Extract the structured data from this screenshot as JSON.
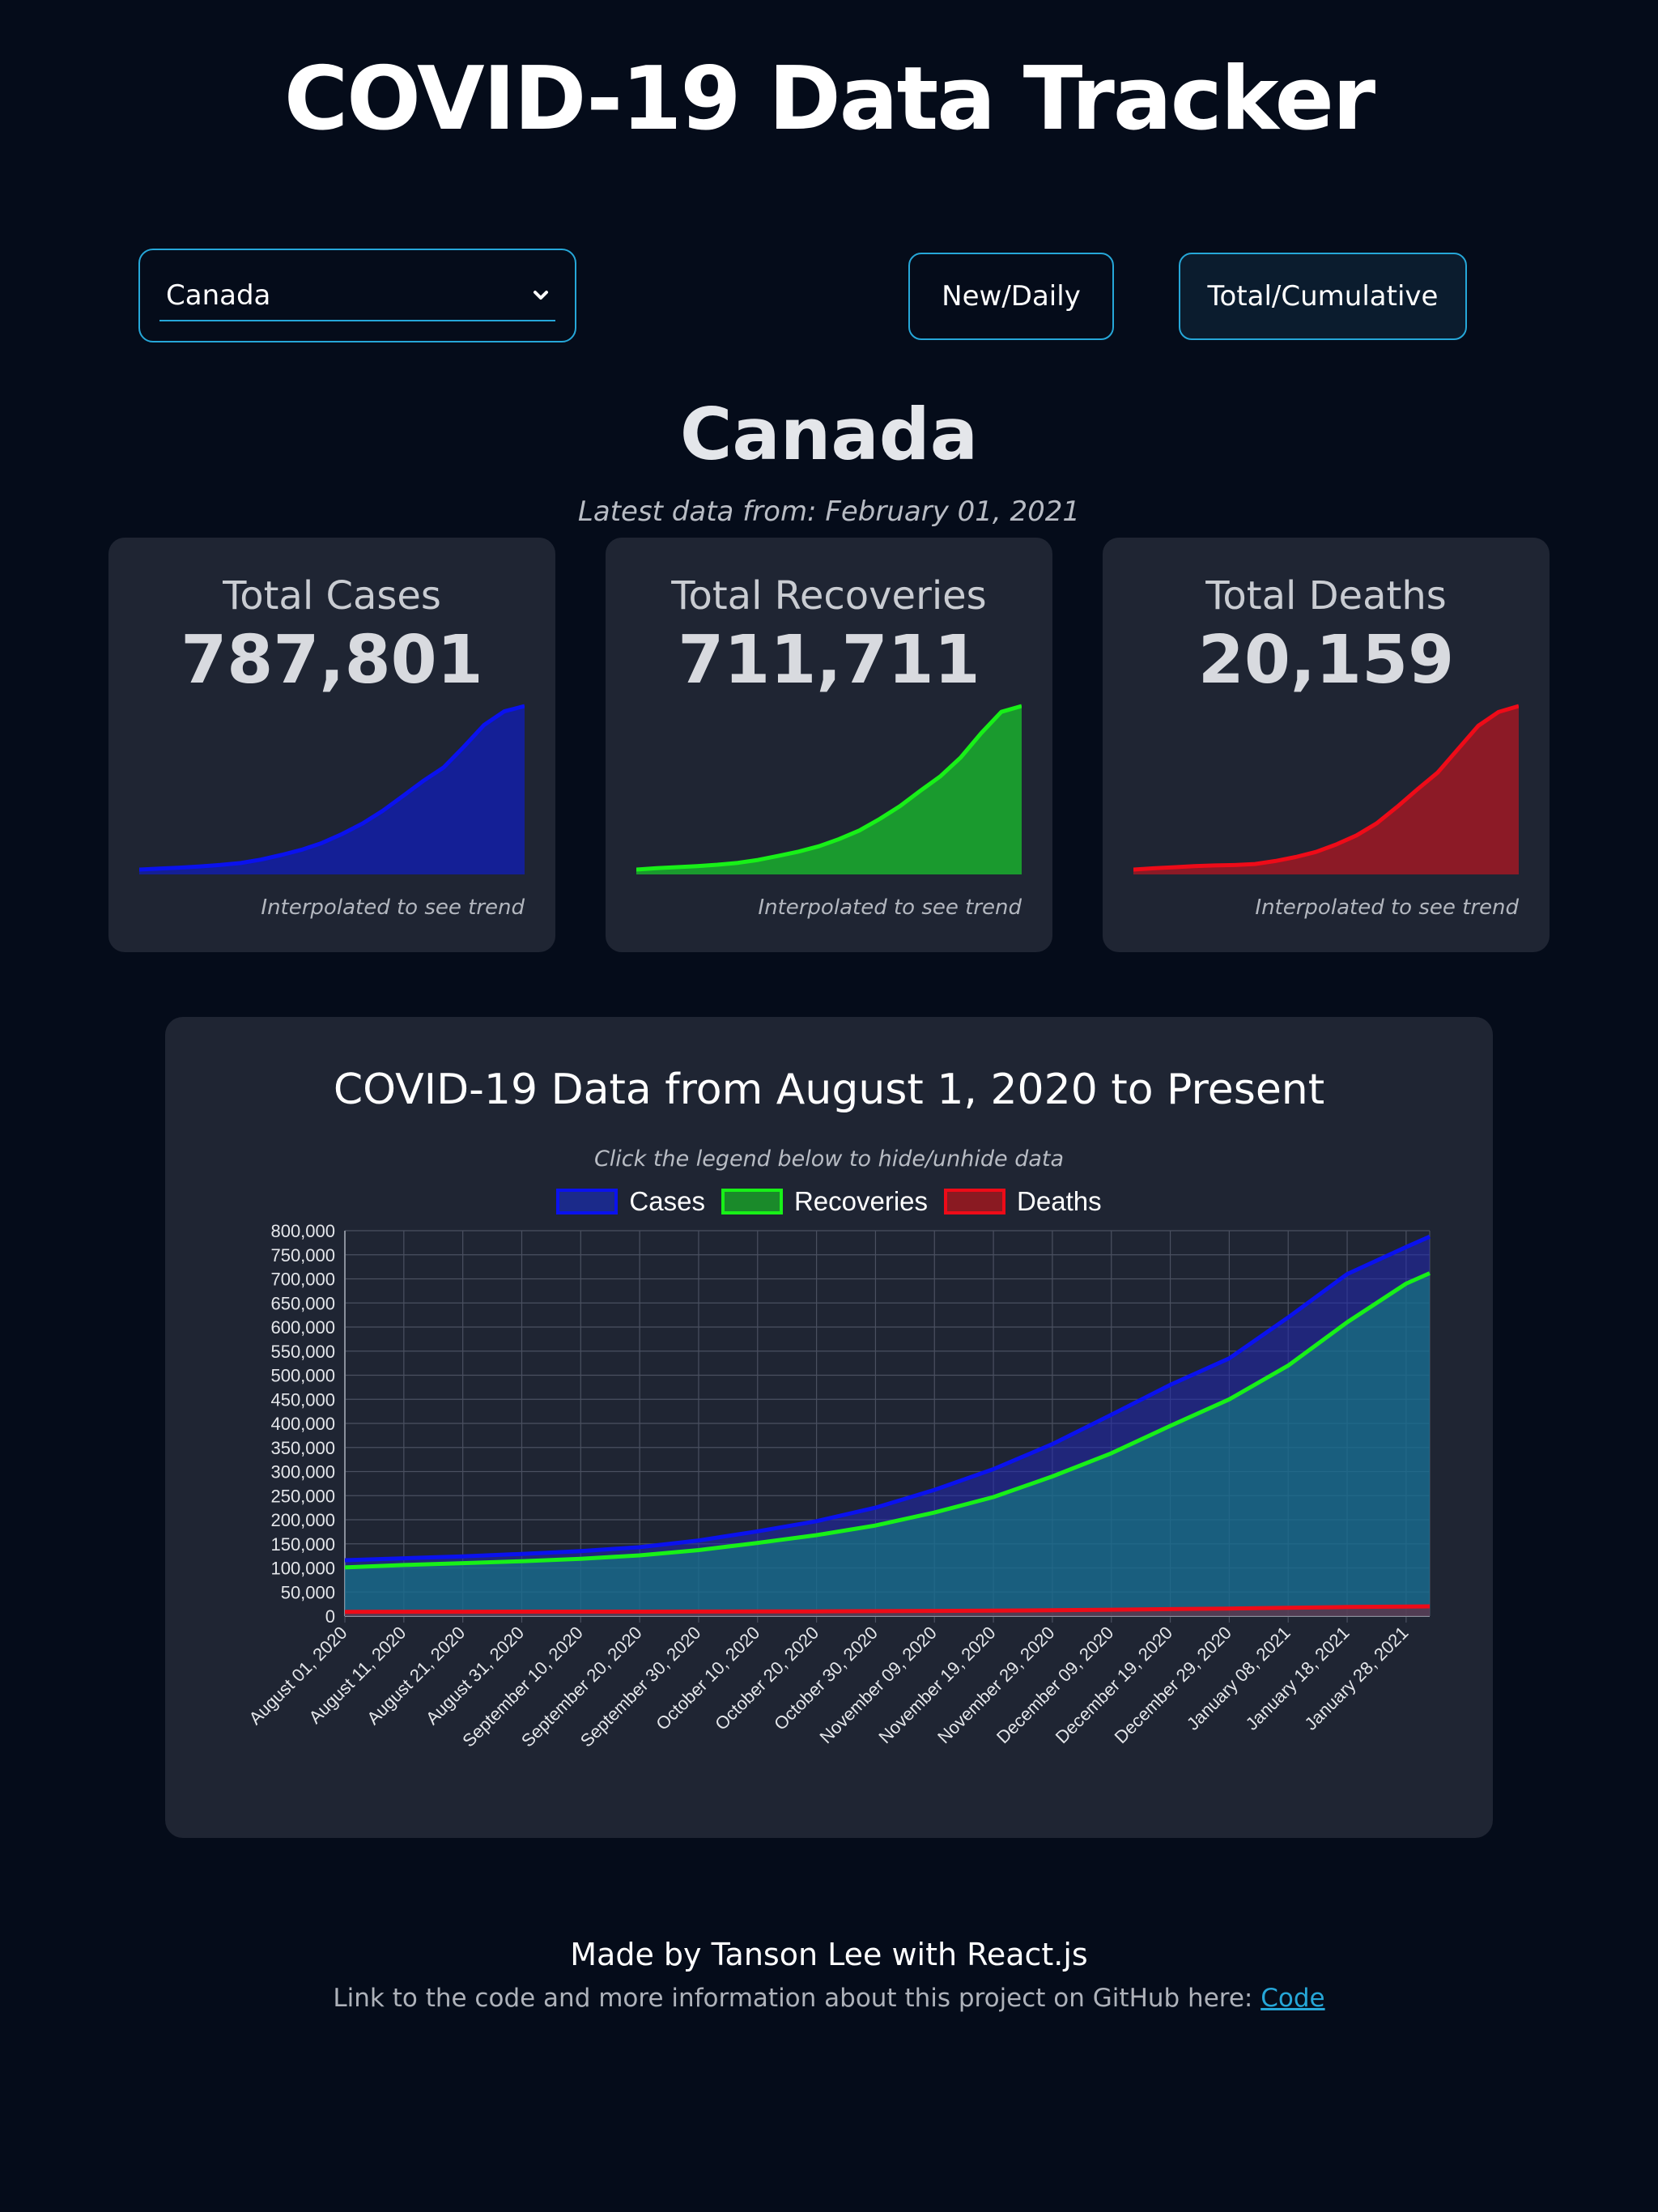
{
  "header": {
    "title": "COVID-19 Data Tracker"
  },
  "controls": {
    "country_select": {
      "value": "Canada"
    },
    "buttons": {
      "daily_label": "New/Daily",
      "total_label": "Total/Cumulative"
    }
  },
  "country": {
    "name": "Canada",
    "latest_label": "Latest data from: February 01, 2021"
  },
  "cards": [
    {
      "label": "Total Cases",
      "value": "787,801",
      "note": "Interpolated to see trend",
      "color": "#0a12ee",
      "fill": "#141f96"
    },
    {
      "label": "Total Recoveries",
      "value": "711,711",
      "note": "Interpolated to see trend",
      "color": "#18f018",
      "fill": "#1a9a2e"
    },
    {
      "label": "Total Deaths",
      "value": "20,159",
      "note": "Interpolated to see trend",
      "color": "#ee0b18",
      "fill": "#8c1a26"
    }
  ],
  "main": {
    "title": "COVID-19 Data from August 1, 2020 to Present",
    "hint": "Click the legend below to hide/unhide data"
  },
  "chart_data": {
    "type": "area",
    "x": [
      "August 01, 2020",
      "August 11, 2020",
      "August 21, 2020",
      "August 31, 2020",
      "September 10, 2020",
      "September 20, 2020",
      "September 30, 2020",
      "October 10, 2020",
      "October 20, 2020",
      "October 30, 2020",
      "November 09, 2020",
      "November 19, 2020",
      "November 29, 2020",
      "December 09, 2020",
      "December 19, 2020",
      "December 29, 2020",
      "January 08, 2021",
      "January 18, 2021",
      "January 28, 2021",
      "February 01, 2021"
    ],
    "series": [
      {
        "name": "Cases",
        "color": "#0a12ee",
        "values": [
          116000,
          120000,
          124000,
          129000,
          135000,
          143000,
          157000,
          176000,
          197000,
          225000,
          262000,
          305000,
          357000,
          418000,
          480000,
          535000,
          620000,
          710000,
          766000,
          787801
        ]
      },
      {
        "name": "Recoveries",
        "color": "#18f018",
        "values": [
          101000,
          106000,
          110000,
          114000,
          119000,
          126000,
          137000,
          152000,
          168000,
          188000,
          215000,
          247000,
          290000,
          338000,
          395000,
          450000,
          520000,
          610000,
          690000,
          711711
        ]
      },
      {
        "name": "Deaths",
        "color": "#ee0b18",
        "values": [
          8960,
          9050,
          9120,
          9200,
          9240,
          9270,
          9340,
          9550,
          9820,
          10170,
          10680,
          11300,
          12130,
          13250,
          14450,
          15600,
          17200,
          18800,
          19750,
          20159
        ]
      }
    ],
    "ylim": [
      0,
      800000
    ],
    "yticks": [
      "0",
      "50,000",
      "100,000",
      "150,000",
      "200,000",
      "250,000",
      "300,000",
      "350,000",
      "400,000",
      "450,000",
      "500,000",
      "550,000",
      "600,000",
      "650,000",
      "700,000",
      "750,000",
      "800,000"
    ],
    "xticks": [
      "August 01, 2020",
      "August 11, 2020",
      "August 21, 2020",
      "August 31, 2020",
      "September 10, 2020",
      "September 20, 2020",
      "September 30, 2020",
      "October 10, 2020",
      "October 20, 2020",
      "October 30, 2020",
      "November 09, 2020",
      "November 19, 2020",
      "November 29, 2020",
      "December 09, 2020",
      "December 19, 2020",
      "December 29, 2020",
      "January 08, 2021",
      "January 18, 2021",
      "January 28, 2021"
    ],
    "grid": true,
    "legend": "top"
  },
  "footer": {
    "made_by": "Made by Tanson Lee with React.js",
    "link_text": "Link to the code and more information about this project on GitHub here:",
    "link_label": "Code"
  }
}
